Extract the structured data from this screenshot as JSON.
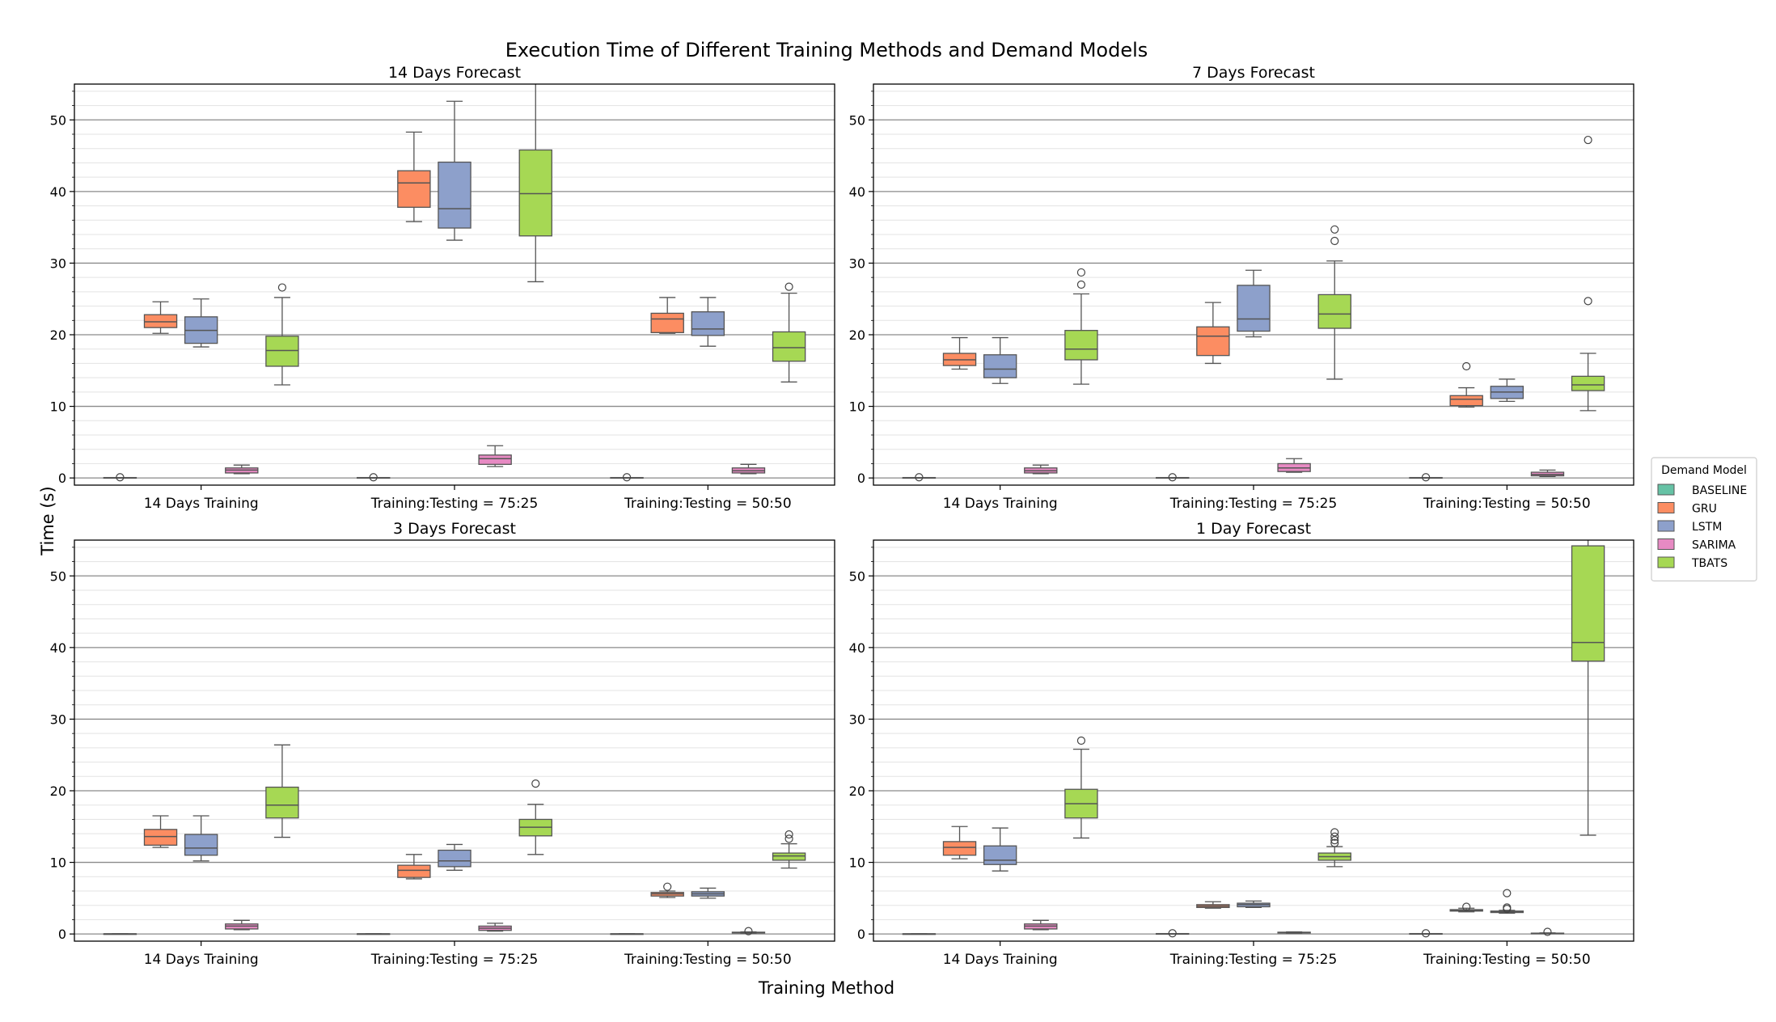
{
  "figure": {
    "suptitle": "Execution Time of Different Training Methods and Demand Models",
    "xlabel": "Training Method",
    "ylabel": "Time (s)"
  },
  "legend": {
    "title": "Demand Model",
    "placement": "right",
    "entries": [
      {
        "name": "BASELINE",
        "color": "#66c2a5"
      },
      {
        "name": "GRU",
        "color": "#fc8d62"
      },
      {
        "name": "LSTM",
        "color": "#8da0cb"
      },
      {
        "name": "SARIMA",
        "color": "#e78ac3"
      },
      {
        "name": "TBATS",
        "color": "#a6d854"
      }
    ]
  },
  "chart_data": [
    {
      "type": "box",
      "title": "14 Days Forecast",
      "categories": [
        "14 Days Training",
        "Training:Testing = 75:25",
        "Training:Testing = 50:50"
      ],
      "ylim": [
        -1,
        55
      ],
      "yticks": [
        0,
        10,
        20,
        30,
        40,
        50
      ],
      "grid": true,
      "series": [
        {
          "name": "BASELINE",
          "boxes": [
            {
              "whislo": 0.05,
              "q1": 0.05,
              "med": 0.05,
              "q3": 0.06,
              "whishi": 0.06,
              "fliers": [
                0.1
              ]
            },
            {
              "whislo": 0.05,
              "q1": 0.05,
              "med": 0.05,
              "q3": 0.06,
              "whishi": 0.06,
              "fliers": [
                0.1
              ]
            },
            {
              "whislo": 0.05,
              "q1": 0.05,
              "med": 0.05,
              "q3": 0.06,
              "whishi": 0.06,
              "fliers": [
                0.1
              ]
            }
          ]
        },
        {
          "name": "GRU",
          "boxes": [
            {
              "whislo": 20.2,
              "q1": 21.0,
              "med": 21.8,
              "q3": 22.8,
              "whishi": 24.6,
              "fliers": []
            },
            {
              "whislo": 35.8,
              "q1": 37.8,
              "med": 41.2,
              "q3": 42.9,
              "whishi": 48.3,
              "fliers": []
            },
            {
              "whislo": 20.2,
              "q1": 20.3,
              "med": 22.2,
              "q3": 23.0,
              "whishi": 25.2,
              "fliers": []
            }
          ]
        },
        {
          "name": "LSTM",
          "boxes": [
            {
              "whislo": 18.3,
              "q1": 18.8,
              "med": 20.6,
              "q3": 22.5,
              "whishi": 25.0,
              "fliers": []
            },
            {
              "whislo": 33.2,
              "q1": 34.9,
              "med": 37.6,
              "q3": 44.1,
              "whishi": 52.6,
              "fliers": []
            },
            {
              "whislo": 18.4,
              "q1": 19.9,
              "med": 20.8,
              "q3": 23.2,
              "whishi": 25.2,
              "fliers": []
            }
          ]
        },
        {
          "name": "SARIMA",
          "boxes": [
            {
              "whislo": 0.6,
              "q1": 0.7,
              "med": 1.1,
              "q3": 1.4,
              "whishi": 1.8,
              "fliers": []
            },
            {
              "whislo": 1.6,
              "q1": 1.9,
              "med": 2.7,
              "q3": 3.2,
              "whishi": 4.5,
              "fliers": []
            },
            {
              "whislo": 0.6,
              "q1": 0.7,
              "med": 1.0,
              "q3": 1.4,
              "whishi": 1.9,
              "fliers": []
            }
          ]
        },
        {
          "name": "TBATS",
          "boxes": [
            {
              "whislo": 13.0,
              "q1": 15.6,
              "med": 17.8,
              "q3": 19.8,
              "whishi": 25.2,
              "fliers": [
                26.6
              ]
            },
            {
              "whislo": 27.4,
              "q1": 33.8,
              "med": 39.7,
              "q3": 45.8,
              "whishi": 57.0,
              "fliers": []
            },
            {
              "whislo": 13.4,
              "q1": 16.3,
              "med": 18.2,
              "q3": 20.4,
              "whishi": 25.8,
              "fliers": [
                26.7
              ]
            }
          ]
        }
      ]
    },
    {
      "type": "box",
      "title": "7 Days Forecast",
      "categories": [
        "14 Days Training",
        "Training:Testing = 75:25",
        "Training:Testing = 50:50"
      ],
      "ylim": [
        -1,
        55
      ],
      "yticks": [
        0,
        10,
        20,
        30,
        40,
        50
      ],
      "grid": true,
      "series": [
        {
          "name": "BASELINE",
          "boxes": [
            {
              "whislo": 0.05,
              "q1": 0.05,
              "med": 0.05,
              "q3": 0.06,
              "whishi": 0.06,
              "fliers": [
                0.1
              ]
            },
            {
              "whislo": 0.05,
              "q1": 0.05,
              "med": 0.05,
              "q3": 0.06,
              "whishi": 0.06,
              "fliers": [
                0.1
              ]
            },
            {
              "whislo": 0.05,
              "q1": 0.05,
              "med": 0.05,
              "q3": 0.06,
              "whishi": 0.06,
              "fliers": [
                0.1
              ]
            }
          ]
        },
        {
          "name": "GRU",
          "boxes": [
            {
              "whislo": 15.2,
              "q1": 15.7,
              "med": 16.5,
              "q3": 17.4,
              "whishi": 19.6,
              "fliers": []
            },
            {
              "whislo": 16.0,
              "q1": 17.1,
              "med": 19.8,
              "q3": 21.1,
              "whishi": 24.5,
              "fliers": []
            },
            {
              "whislo": 9.9,
              "q1": 10.1,
              "med": 11.0,
              "q3": 11.5,
              "whishi": 12.6,
              "fliers": [
                15.6
              ]
            }
          ]
        },
        {
          "name": "LSTM",
          "boxes": [
            {
              "whislo": 13.2,
              "q1": 14.0,
              "med": 15.2,
              "q3": 17.2,
              "whishi": 19.6,
              "fliers": []
            },
            {
              "whislo": 19.7,
              "q1": 20.5,
              "med": 22.2,
              "q3": 26.9,
              "whishi": 29.0,
              "fliers": []
            },
            {
              "whislo": 10.7,
              "q1": 11.1,
              "med": 12.0,
              "q3": 12.8,
              "whishi": 13.8,
              "fliers": []
            }
          ]
        },
        {
          "name": "SARIMA",
          "boxes": [
            {
              "whislo": 0.6,
              "q1": 0.7,
              "med": 1.0,
              "q3": 1.4,
              "whishi": 1.8,
              "fliers": []
            },
            {
              "whislo": 0.8,
              "q1": 0.9,
              "med": 1.4,
              "q3": 2.0,
              "whishi": 2.7,
              "fliers": []
            },
            {
              "whislo": 0.2,
              "q1": 0.3,
              "med": 0.5,
              "q3": 0.8,
              "whishi": 1.1,
              "fliers": []
            }
          ]
        },
        {
          "name": "TBATS",
          "boxes": [
            {
              "whislo": 13.1,
              "q1": 16.5,
              "med": 18.0,
              "q3": 20.6,
              "whishi": 25.7,
              "fliers": [
                27.0,
                28.7
              ]
            },
            {
              "whislo": 13.8,
              "q1": 20.9,
              "med": 22.9,
              "q3": 25.6,
              "whishi": 30.3,
              "fliers": [
                33.1,
                34.7
              ]
            },
            {
              "whislo": 9.4,
              "q1": 12.2,
              "med": 13.0,
              "q3": 14.2,
              "whishi": 17.4,
              "fliers": [
                24.7,
                47.2
              ]
            }
          ]
        }
      ]
    },
    {
      "type": "box",
      "title": "3 Days Forecast",
      "categories": [
        "14 Days Training",
        "Training:Testing = 75:25",
        "Training:Testing = 50:50"
      ],
      "ylim": [
        -1,
        55
      ],
      "yticks": [
        0,
        10,
        20,
        30,
        40,
        50
      ],
      "grid": true,
      "series": [
        {
          "name": "BASELINE",
          "boxes": [
            {
              "whislo": 0.02,
              "q1": 0.02,
              "med": 0.02,
              "q3": 0.03,
              "whishi": 0.03,
              "fliers": []
            },
            {
              "whislo": 0.02,
              "q1": 0.02,
              "med": 0.02,
              "q3": 0.03,
              "whishi": 0.03,
              "fliers": []
            },
            {
              "whislo": 0.02,
              "q1": 0.02,
              "med": 0.02,
              "q3": 0.03,
              "whishi": 0.03,
              "fliers": []
            }
          ]
        },
        {
          "name": "GRU",
          "boxes": [
            {
              "whislo": 12.1,
              "q1": 12.4,
              "med": 13.6,
              "q3": 14.6,
              "whishi": 16.5,
              "fliers": []
            },
            {
              "whislo": 7.7,
              "q1": 7.9,
              "med": 8.9,
              "q3": 9.6,
              "whishi": 11.1,
              "fliers": []
            },
            {
              "whislo": 5.1,
              "q1": 5.3,
              "med": 5.6,
              "q3": 5.8,
              "whishi": 6.0,
              "fliers": [
                6.6
              ]
            }
          ]
        },
        {
          "name": "LSTM",
          "boxes": [
            {
              "whislo": 10.2,
              "q1": 11.0,
              "med": 12.0,
              "q3": 13.9,
              "whishi": 16.5,
              "fliers": []
            },
            {
              "whislo": 8.9,
              "q1": 9.4,
              "med": 10.2,
              "q3": 11.7,
              "whishi": 12.5,
              "fliers": []
            },
            {
              "whislo": 5.0,
              "q1": 5.3,
              "med": 5.6,
              "q3": 5.9,
              "whishi": 6.4,
              "fliers": []
            }
          ]
        },
        {
          "name": "SARIMA",
          "boxes": [
            {
              "whislo": 0.6,
              "q1": 0.7,
              "med": 1.1,
              "q3": 1.4,
              "whishi": 1.9,
              "fliers": []
            },
            {
              "whislo": 0.4,
              "q1": 0.5,
              "med": 0.8,
              "q3": 1.1,
              "whishi": 1.5,
              "fliers": []
            },
            {
              "whislo": 0.1,
              "q1": 0.15,
              "med": 0.2,
              "q3": 0.25,
              "whishi": 0.3,
              "fliers": [
                0.4
              ]
            }
          ]
        },
        {
          "name": "TBATS",
          "boxes": [
            {
              "whislo": 13.5,
              "q1": 16.2,
              "med": 18.0,
              "q3": 20.5,
              "whishi": 26.4,
              "fliers": []
            },
            {
              "whislo": 11.1,
              "q1": 13.7,
              "med": 14.9,
              "q3": 16.0,
              "whishi": 18.1,
              "fliers": [
                21.0
              ]
            },
            {
              "whislo": 9.2,
              "q1": 10.3,
              "med": 10.9,
              "q3": 11.3,
              "whishi": 12.6,
              "fliers": [
                13.3,
                13.9
              ]
            }
          ]
        }
      ]
    },
    {
      "type": "box",
      "title": "1 Day Forecast",
      "categories": [
        "14 Days Training",
        "Training:Testing = 75:25",
        "Training:Testing = 50:50"
      ],
      "ylim": [
        -1,
        55
      ],
      "yticks": [
        0,
        10,
        20,
        30,
        40,
        50
      ],
      "grid": true,
      "series": [
        {
          "name": "BASELINE",
          "boxes": [
            {
              "whislo": 0.02,
              "q1": 0.02,
              "med": 0.02,
              "q3": 0.03,
              "whishi": 0.03,
              "fliers": []
            },
            {
              "whislo": 0.05,
              "q1": 0.05,
              "med": 0.05,
              "q3": 0.06,
              "whishi": 0.06,
              "fliers": [
                0.1
              ]
            },
            {
              "whislo": 0.05,
              "q1": 0.05,
              "med": 0.05,
              "q3": 0.06,
              "whishi": 0.06,
              "fliers": [
                0.1
              ]
            }
          ]
        },
        {
          "name": "GRU",
          "boxes": [
            {
              "whislo": 10.5,
              "q1": 11.0,
              "med": 12.1,
              "q3": 12.9,
              "whishi": 15.0,
              "fliers": []
            },
            {
              "whislo": 3.6,
              "q1": 3.7,
              "med": 3.9,
              "q3": 4.1,
              "whishi": 4.5,
              "fliers": []
            },
            {
              "whislo": 3.1,
              "q1": 3.2,
              "med": 3.3,
              "q3": 3.4,
              "whishi": 3.6,
              "fliers": [
                3.8
              ]
            }
          ]
        },
        {
          "name": "LSTM",
          "boxes": [
            {
              "whislo": 8.8,
              "q1": 9.7,
              "med": 10.3,
              "q3": 12.3,
              "whishi": 14.8,
              "fliers": []
            },
            {
              "whislo": 3.7,
              "q1": 3.8,
              "med": 4.1,
              "q3": 4.3,
              "whishi": 4.6,
              "fliers": []
            },
            {
              "whislo": 2.9,
              "q1": 3.0,
              "med": 3.1,
              "q3": 3.2,
              "whishi": 3.3,
              "fliers": [
                3.5,
                3.7,
                5.7
              ]
            }
          ]
        },
        {
          "name": "SARIMA",
          "boxes": [
            {
              "whislo": 0.6,
              "q1": 0.7,
              "med": 1.1,
              "q3": 1.4,
              "whishi": 1.9,
              "fliers": []
            },
            {
              "whislo": 0.1,
              "q1": 0.15,
              "med": 0.2,
              "q3": 0.25,
              "whishi": 0.3,
              "fliers": []
            },
            {
              "whislo": 0.05,
              "q1": 0.08,
              "med": 0.1,
              "q3": 0.12,
              "whishi": 0.15,
              "fliers": [
                0.3
              ]
            }
          ]
        },
        {
          "name": "TBATS",
          "boxes": [
            {
              "whislo": 13.4,
              "q1": 16.2,
              "med": 18.2,
              "q3": 20.2,
              "whishi": 25.8,
              "fliers": [
                27.0
              ]
            },
            {
              "whislo": 9.4,
              "q1": 10.3,
              "med": 10.8,
              "q3": 11.3,
              "whishi": 12.2,
              "fliers": [
                12.7,
                13.1,
                13.6,
                14.2
              ]
            },
            {
              "whislo": 13.8,
              "q1": 38.1,
              "med": 40.7,
              "q3": 54.2,
              "whishi": 56.0,
              "fliers": []
            }
          ]
        }
      ]
    }
  ]
}
